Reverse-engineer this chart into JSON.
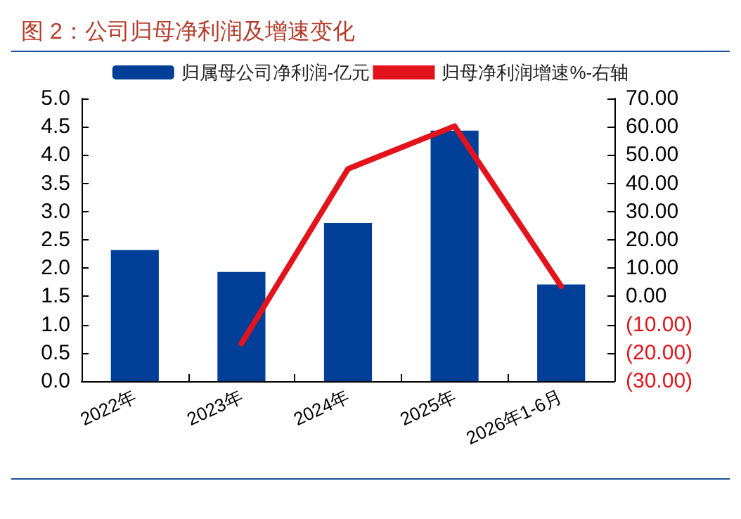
{
  "chart_data": {
    "type": "bar",
    "title": "图 2：公司归母净利润及增速变化",
    "categories": [
      "2022年",
      "2023年",
      "2024年",
      "2025年",
      "2026年1-6月"
    ],
    "series": [
      {
        "name": "归属母公司净利润-亿元",
        "color": "#003f98",
        "values": [
          2.32,
          1.93,
          2.8,
          4.43,
          1.71
        ]
      },
      {
        "name": "归母净利润增速%-右轴",
        "type": "line",
        "axis": "y2",
        "color": "#e3131b",
        "values": [
          null,
          -16.7,
          45.1,
          60.2,
          3.6
        ]
      }
    ],
    "ylim": [
      0,
      5
    ],
    "yticks": [
      {
        "value": 0,
        "label": "0.0"
      },
      0.5,
      {
        "value": 1,
        "label": "1.0"
      },
      1.5,
      {
        "value": 2,
        "label": "2.0"
      },
      2.5,
      {
        "value": 3,
        "label": "3.0"
      },
      3.5,
      {
        "value": 4,
        "label": "4.0"
      },
      4.5,
      {
        "value": 5,
        "label": "5.0"
      }
    ],
    "y2lim": [
      -30,
      70
    ],
    "y2ticks": [
      {
        "value": -30,
        "label": "(30.00)"
      },
      {
        "value": -20,
        "label": "(20.00)"
      },
      {
        "value": -10,
        "label": "(10.00)"
      },
      {
        "value": 0,
        "label": "0.00"
      },
      {
        "value": 10,
        "label": "10.00"
      },
      {
        "value": 20,
        "label": "20.00"
      },
      {
        "value": 30,
        "label": "30.00"
      },
      {
        "value": 40,
        "label": "40.00"
      },
      {
        "value": 50,
        "label": "50.00"
      },
      {
        "value": 60,
        "label": "60.00"
      },
      {
        "value": 70,
        "label": "70.00"
      }
    ],
    "grid": false,
    "legend": "top",
    "marker": "none"
  }
}
